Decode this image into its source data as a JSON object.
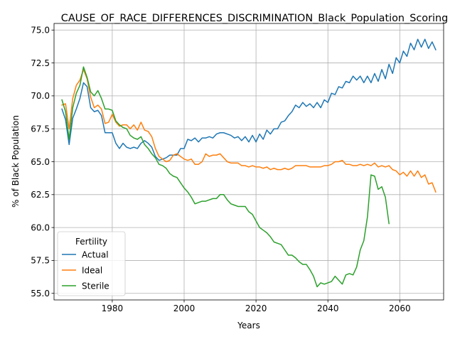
{
  "chart_data": {
    "type": "line",
    "title": "CAUSE_OF_RACE_DIFFERENCES_DISCRIMINATION_Black_Population_Scoring",
    "xlabel": "Years",
    "ylabel": "% of Black Population",
    "xlim": [
      1963.8,
      2072.2
    ],
    "ylim": [
      54.5,
      75.5
    ],
    "xticks": [
      1980,
      2000,
      2020,
      2040,
      2060
    ],
    "yticks": [
      55.0,
      57.5,
      60.0,
      62.5,
      65.0,
      67.5,
      70.0,
      72.5,
      75.0
    ],
    "xtick_labels": [
      "1980",
      "2000",
      "2020",
      "2040",
      "2060"
    ],
    "ytick_labels": [
      "55.0",
      "57.5",
      "60.0",
      "62.5",
      "65.0",
      "67.5",
      "70.0",
      "72.5",
      "75.0"
    ],
    "grid": true,
    "legend": {
      "title": "Fertility",
      "placement": "lower-left"
    },
    "series": [
      {
        "name": "Actual",
        "color": "#1f77b4",
        "x": [
          1966,
          1967,
          1968,
          1969,
          1970,
          1971,
          1972,
          1973,
          1974,
          1975,
          1976,
          1977,
          1978,
          1979,
          1980,
          1981,
          1982,
          1983,
          1984,
          1985,
          1986,
          1987,
          1988,
          1989,
          1990,
          1991,
          1992,
          1993,
          1994,
          1995,
          1996,
          1997,
          1998,
          1999,
          2000,
          2001,
          2002,
          2003,
          2004,
          2005,
          2006,
          2007,
          2008,
          2009,
          2010,
          2011,
          2012,
          2013,
          2014,
          2015,
          2016,
          2017,
          2018,
          2019,
          2020,
          2021,
          2022,
          2023,
          2024,
          2025,
          2026,
          2027,
          2028,
          2029,
          2030,
          2031,
          2032,
          2033,
          2034,
          2035,
          2036,
          2037,
          2038,
          2039,
          2040,
          2041,
          2042,
          2043,
          2044,
          2045,
          2046,
          2047,
          2048,
          2049,
          2050,
          2051,
          2052,
          2053,
          2054,
          2055,
          2056,
          2057,
          2058,
          2059,
          2060,
          2061,
          2062,
          2063,
          2064,
          2065,
          2066,
          2067,
          2068,
          2069,
          2070
        ],
        "values": [
          69.0,
          68.2,
          66.3,
          68.3,
          69.0,
          69.8,
          71.0,
          70.7,
          69.1,
          68.8,
          68.9,
          68.5,
          67.2,
          67.2,
          67.2,
          66.4,
          66.0,
          66.4,
          66.1,
          66.0,
          66.1,
          66.0,
          66.4,
          66.6,
          66.4,
          66.1,
          65.4,
          65.1,
          65.2,
          65.3,
          65.5,
          65.5,
          65.5,
          66.0,
          66.0,
          66.7,
          66.6,
          66.8,
          66.5,
          66.8,
          66.8,
          66.9,
          66.8,
          67.1,
          67.2,
          67.2,
          67.1,
          67.0,
          66.8,
          66.9,
          66.6,
          66.9,
          66.5,
          67.0,
          66.5,
          67.1,
          66.7,
          67.4,
          67.1,
          67.5,
          67.5,
          68.0,
          68.1,
          68.5,
          68.8,
          69.3,
          69.1,
          69.5,
          69.2,
          69.4,
          69.1,
          69.5,
          69.1,
          69.7,
          69.5,
          70.2,
          70.1,
          70.7,
          70.6,
          71.1,
          71.0,
          71.5,
          71.2,
          71.5,
          71.0,
          71.5,
          71.0,
          71.7,
          71.1,
          72.0,
          71.3,
          72.4,
          71.7,
          72.9,
          72.5,
          73.4,
          73.0,
          74.0,
          73.5,
          74.3,
          73.7,
          74.3,
          73.6,
          74.1,
          73.5
        ]
      },
      {
        "name": "Ideal",
        "color": "#ff7f0e",
        "x": [
          1966,
          1967,
          1968,
          1969,
          1970,
          1971,
          1972,
          1973,
          1974,
          1975,
          1976,
          1977,
          1978,
          1979,
          1980,
          1981,
          1982,
          1983,
          1984,
          1985,
          1986,
          1987,
          1988,
          1989,
          1990,
          1991,
          1992,
          1993,
          1994,
          1995,
          1996,
          1997,
          1998,
          1999,
          2000,
          2001,
          2002,
          2003,
          2004,
          2005,
          2006,
          2007,
          2008,
          2009,
          2010,
          2011,
          2012,
          2013,
          2014,
          2015,
          2016,
          2017,
          2018,
          2019,
          2020,
          2021,
          2022,
          2023,
          2024,
          2025,
          2026,
          2027,
          2028,
          2029,
          2030,
          2031,
          2032,
          2033,
          2034,
          2035,
          2036,
          2037,
          2038,
          2039,
          2040,
          2041,
          2042,
          2043,
          2044,
          2045,
          2046,
          2047,
          2048,
          2049,
          2050,
          2051,
          2052,
          2053,
          2054,
          2055,
          2056,
          2057,
          2058,
          2059,
          2060,
          2061,
          2062,
          2063,
          2064,
          2065,
          2066,
          2067,
          2068,
          2069,
          2070
        ],
        "values": [
          69.3,
          69.4,
          67.5,
          69.8,
          70.8,
          71.2,
          72.0,
          71.3,
          69.9,
          69.1,
          69.3,
          69.0,
          67.9,
          68.0,
          68.6,
          68.0,
          67.7,
          67.8,
          67.8,
          67.5,
          67.8,
          67.4,
          68.0,
          67.4,
          67.3,
          66.9,
          66.0,
          65.4,
          65.2,
          65.0,
          65.1,
          65.5,
          65.6,
          65.4,
          65.2,
          65.1,
          65.2,
          64.8,
          64.8,
          65.0,
          65.6,
          65.4,
          65.5,
          65.5,
          65.6,
          65.3,
          65.0,
          64.9,
          64.9,
          64.9,
          64.7,
          64.7,
          64.6,
          64.7,
          64.6,
          64.6,
          64.5,
          64.6,
          64.4,
          64.5,
          64.4,
          64.4,
          64.5,
          64.4,
          64.5,
          64.7,
          64.7,
          64.7,
          64.7,
          64.6,
          64.6,
          64.6,
          64.6,
          64.7,
          64.7,
          64.8,
          65.0,
          65.0,
          65.1,
          64.8,
          64.8,
          64.7,
          64.7,
          64.8,
          64.7,
          64.8,
          64.7,
          64.9,
          64.6,
          64.7,
          64.6,
          64.7,
          64.4,
          64.3,
          64.0,
          64.2,
          63.9,
          64.3,
          63.9,
          64.3,
          63.8,
          64.0,
          63.3,
          63.4,
          62.7
        ]
      },
      {
        "name": "Sterile",
        "color": "#2ca02c",
        "x": [
          1966,
          1967,
          1968,
          1969,
          1970,
          1971,
          1972,
          1973,
          1974,
          1975,
          1976,
          1977,
          1978,
          1979,
          1980,
          1981,
          1982,
          1983,
          1984,
          1985,
          1986,
          1987,
          1988,
          1989,
          1990,
          1991,
          1992,
          1993,
          1994,
          1995,
          1996,
          1997,
          1998,
          1999,
          2000,
          2001,
          2002,
          2003,
          2004,
          2005,
          2006,
          2007,
          2008,
          2009,
          2010,
          2011,
          2012,
          2013,
          2014,
          2015,
          2016,
          2017,
          2018,
          2019,
          2020,
          2021,
          2022,
          2023,
          2024,
          2025,
          2026,
          2027,
          2028,
          2029,
          2030,
          2031,
          2032,
          2033,
          2034,
          2035,
          2036,
          2037,
          2038,
          2039,
          2040,
          2041,
          2042,
          2043,
          2044,
          2045,
          2046,
          2047,
          2048,
          2049,
          2050,
          2051,
          2052,
          2053,
          2054,
          2055,
          2056,
          2057
        ],
        "values": [
          69.7,
          68.8,
          66.7,
          69.1,
          70.2,
          70.8,
          72.2,
          71.4,
          70.3,
          70.0,
          70.4,
          69.8,
          69.0,
          69.0,
          68.9,
          68.1,
          67.8,
          67.6,
          67.5,
          67.0,
          66.8,
          66.7,
          66.9,
          66.3,
          66.0,
          65.6,
          65.3,
          64.8,
          64.7,
          64.5,
          64.1,
          63.9,
          63.8,
          63.4,
          63.0,
          62.7,
          62.3,
          61.8,
          61.9,
          62.0,
          62.0,
          62.1,
          62.2,
          62.2,
          62.5,
          62.5,
          62.1,
          61.8,
          61.7,
          61.6,
          61.6,
          61.6,
          61.2,
          61.0,
          60.5,
          60.0,
          59.8,
          59.6,
          59.3,
          58.9,
          58.8,
          58.7,
          58.3,
          57.9,
          57.9,
          57.7,
          57.4,
          57.2,
          57.2,
          56.8,
          56.3,
          55.5,
          55.8,
          55.7,
          55.8,
          55.9,
          56.3,
          56.0,
          55.7,
          56.4,
          56.5,
          56.4,
          57.0,
          58.3,
          59.0,
          60.8,
          64.0,
          63.9,
          62.9,
          63.1,
          62.3,
          60.3
        ]
      }
    ]
  }
}
